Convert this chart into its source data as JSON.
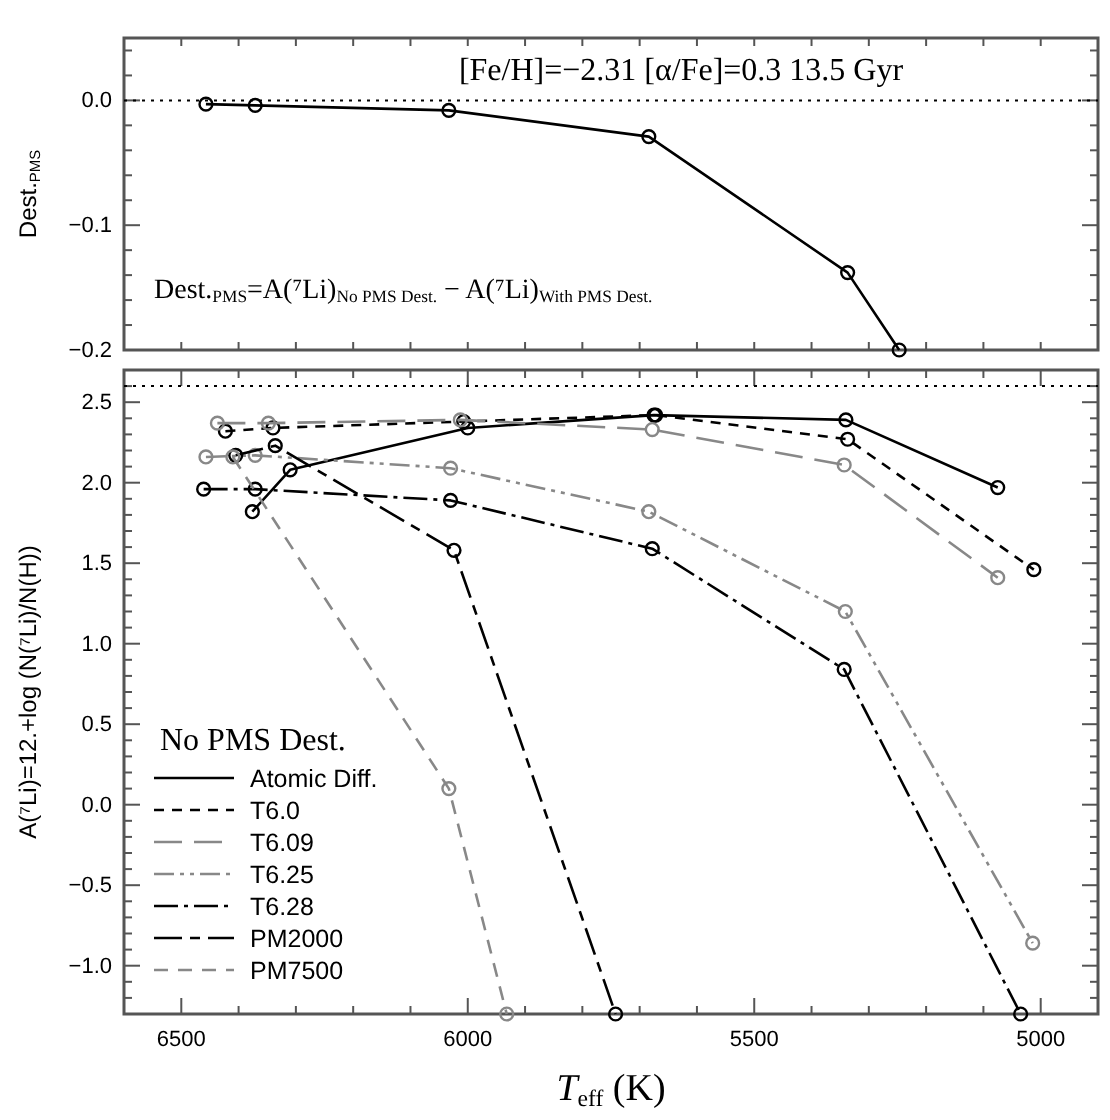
{
  "chart_data": [
    {
      "type": "line",
      "ylabel": "Dest.$_{PMS}$",
      "annotations": [
        "[Fe/H]=−2.31 [α/Fe]=0.3 13.5 Gyr",
        "Dest.$_{PMS}$=A(⁷Li)$_{No PMS Dest.}$ − A(⁷Li)$_{With PMS Dest.}$"
      ],
      "xlim": [
        6600,
        4900
      ],
      "ylim": [
        -0.2,
        0.05
      ],
      "tick_labels": "y",
      "marker": "circle",
      "legend": false,
      "xticks": [
        {
          "value": 6600,
          "label": null
        },
        {
          "value": 6500,
          "label": null
        },
        {
          "value": 6400,
          "label": null
        },
        {
          "value": 6300,
          "label": null
        },
        {
          "value": 6200,
          "label": null
        },
        {
          "value": 6100,
          "label": null
        },
        {
          "value": 6000,
          "label": null
        },
        {
          "value": 5900,
          "label": null
        },
        {
          "value": 5800,
          "label": null
        },
        {
          "value": 5700,
          "label": null
        },
        {
          "value": 5600,
          "label": null
        },
        {
          "value": 5500,
          "label": null
        },
        {
          "value": 5400,
          "label": null
        },
        {
          "value": 5300,
          "label": null
        },
        {
          "value": 5200,
          "label": null
        },
        {
          "value": 5100,
          "label": null
        },
        {
          "value": 5000,
          "label": null
        },
        {
          "value": 4900,
          "label": null
        }
      ],
      "yticks": [
        {
          "value": -0.2,
          "label": "−0.2"
        },
        {
          "value": -0.18,
          "label": null
        },
        {
          "value": -0.16,
          "label": null
        },
        {
          "value": -0.14,
          "label": null
        },
        {
          "value": -0.12,
          "label": null
        },
        {
          "value": -0.1,
          "label": "−0.1"
        },
        {
          "value": -0.08,
          "label": null
        },
        {
          "value": -0.06,
          "label": null
        },
        {
          "value": -0.04,
          "label": null
        },
        {
          "value": -0.02,
          "label": null
        },
        {
          "value": 0,
          "label": "0.0"
        },
        {
          "value": 0.02,
          "label": null
        },
        {
          "value": 0.04,
          "label": null
        }
      ],
      "ref_lines": [
        {
          "axis": "y",
          "value": 0,
          "line_style": "dotted"
        }
      ],
      "series": [
        {
          "color": "#000000",
          "line_style": "solid",
          "x": [
            6457,
            6371,
            6033,
            5684,
            5337,
            5247
          ],
          "values": [
            -0.003,
            -0.004,
            -0.008,
            -0.029,
            -0.138,
            -0.2
          ]
        }
      ]
    },
    {
      "type": "line",
      "xlabel": "T$_{eff}$ (K)",
      "ylabel": "A(⁷Li)=12.+log (N(⁷Li)/N(H))",
      "legend_title": "No PMS Dest.",
      "xlim": [
        6600,
        4900
      ],
      "ylim": [
        -1.3,
        2.7
      ],
      "marker": "circle",
      "legend": "bottom left",
      "xticks": [
        {
          "value": 6600,
          "label": null
        },
        {
          "value": 6500,
          "label": "6500"
        },
        {
          "value": 6400,
          "label": null
        },
        {
          "value": 6300,
          "label": null
        },
        {
          "value": 6200,
          "label": null
        },
        {
          "value": 6100,
          "label": null
        },
        {
          "value": 6000,
          "label": "6000"
        },
        {
          "value": 5900,
          "label": null
        },
        {
          "value": 5800,
          "label": null
        },
        {
          "value": 5700,
          "label": null
        },
        {
          "value": 5600,
          "label": null
        },
        {
          "value": 5500,
          "label": "5500"
        },
        {
          "value": 5400,
          "label": null
        },
        {
          "value": 5300,
          "label": null
        },
        {
          "value": 5200,
          "label": null
        },
        {
          "value": 5100,
          "label": null
        },
        {
          "value": 5000,
          "label": "5000"
        },
        {
          "value": 4900,
          "label": null
        }
      ],
      "yticks": [
        {
          "value": -1.2,
          "label": null
        },
        {
          "value": -1.1,
          "label": null
        },
        {
          "value": -1.0,
          "label": "−1.0"
        },
        {
          "value": -0.9,
          "label": null
        },
        {
          "value": -0.8,
          "label": null
        },
        {
          "value": -0.7,
          "label": null
        },
        {
          "value": -0.6,
          "label": null
        },
        {
          "value": -0.5,
          "label": "−0.5"
        },
        {
          "value": -0.4,
          "label": null
        },
        {
          "value": -0.3,
          "label": null
        },
        {
          "value": -0.2,
          "label": null
        },
        {
          "value": -0.1,
          "label": null
        },
        {
          "value": 0,
          "label": "0.0"
        },
        {
          "value": 0.1,
          "label": null
        },
        {
          "value": 0.2,
          "label": null
        },
        {
          "value": 0.3,
          "label": null
        },
        {
          "value": 0.4,
          "label": null
        },
        {
          "value": 0.5,
          "label": "0.5"
        },
        {
          "value": 0.6,
          "label": null
        },
        {
          "value": 0.7,
          "label": null
        },
        {
          "value": 0.8,
          "label": null
        },
        {
          "value": 0.9,
          "label": null
        },
        {
          "value": 1.0,
          "label": "1.0"
        },
        {
          "value": 1.1,
          "label": null
        },
        {
          "value": 1.2,
          "label": null
        },
        {
          "value": 1.3,
          "label": null
        },
        {
          "value": 1.4,
          "label": null
        },
        {
          "value": 1.5,
          "label": "1.5"
        },
        {
          "value": 1.6,
          "label": null
        },
        {
          "value": 1.7,
          "label": null
        },
        {
          "value": 1.8,
          "label": null
        },
        {
          "value": 1.9,
          "label": null
        },
        {
          "value": 2.0,
          "label": "2.0"
        },
        {
          "value": 2.1,
          "label": null
        },
        {
          "value": 2.2,
          "label": null
        },
        {
          "value": 2.3,
          "label": null
        },
        {
          "value": 2.4,
          "label": null
        },
        {
          "value": 2.5,
          "label": "2.5"
        },
        {
          "value": 2.6,
          "label": null
        }
      ],
      "ref_lines": [
        {
          "axis": "y",
          "value": 2.6,
          "line_style": "dotted"
        }
      ],
      "series": [
        {
          "name": "Atomic Diff.",
          "color": "#000000",
          "line_style": "solid",
          "x": [
            6376,
            6310,
            6000,
            5675,
            5340,
            5075
          ],
          "values": [
            1.82,
            2.08,
            2.34,
            2.42,
            2.39,
            1.97
          ]
        },
        {
          "name": "T6.0",
          "color": "#000000",
          "line_style": "dashed",
          "x": [
            6423,
            6340,
            6007,
            5672,
            5337,
            5012
          ],
          "values": [
            2.32,
            2.34,
            2.38,
            2.42,
            2.27,
            1.46
          ]
        },
        {
          "name": "T6.09",
          "color": "#888888",
          "line_style": "dashed",
          "x": [
            6437,
            6348,
            6013,
            5678,
            5343,
            5075
          ],
          "values": [
            2.37,
            2.37,
            2.39,
            2.33,
            2.11,
            1.41
          ]
        },
        {
          "name": "T6.25",
          "color": "#888888",
          "line_style": "dashed",
          "x": [
            6457,
            6371,
            6030,
            5684,
            5341,
            5014
          ],
          "values": [
            2.16,
            2.17,
            2.09,
            1.82,
            1.2,
            -0.86
          ]
        },
        {
          "name": "T6.28",
          "color": "#000000",
          "line_style": "dashed",
          "x": [
            6461,
            6371,
            6030,
            5678,
            5343,
            5035
          ],
          "values": [
            1.96,
            1.96,
            1.89,
            1.59,
            0.84,
            -1.3
          ]
        },
        {
          "name": "PM2000",
          "color": "#000000",
          "line_style": "dashed",
          "x": [
            6405,
            6336,
            6024,
            5742
          ],
          "values": [
            2.17,
            2.23,
            1.58,
            -1.3
          ]
        },
        {
          "name": "PM7500",
          "color": "#888888",
          "line_style": "dashed",
          "x": [
            6410,
            6033,
            5932
          ],
          "values": [
            2.16,
            0.1,
            -1.3
          ]
        }
      ]
    }
  ]
}
